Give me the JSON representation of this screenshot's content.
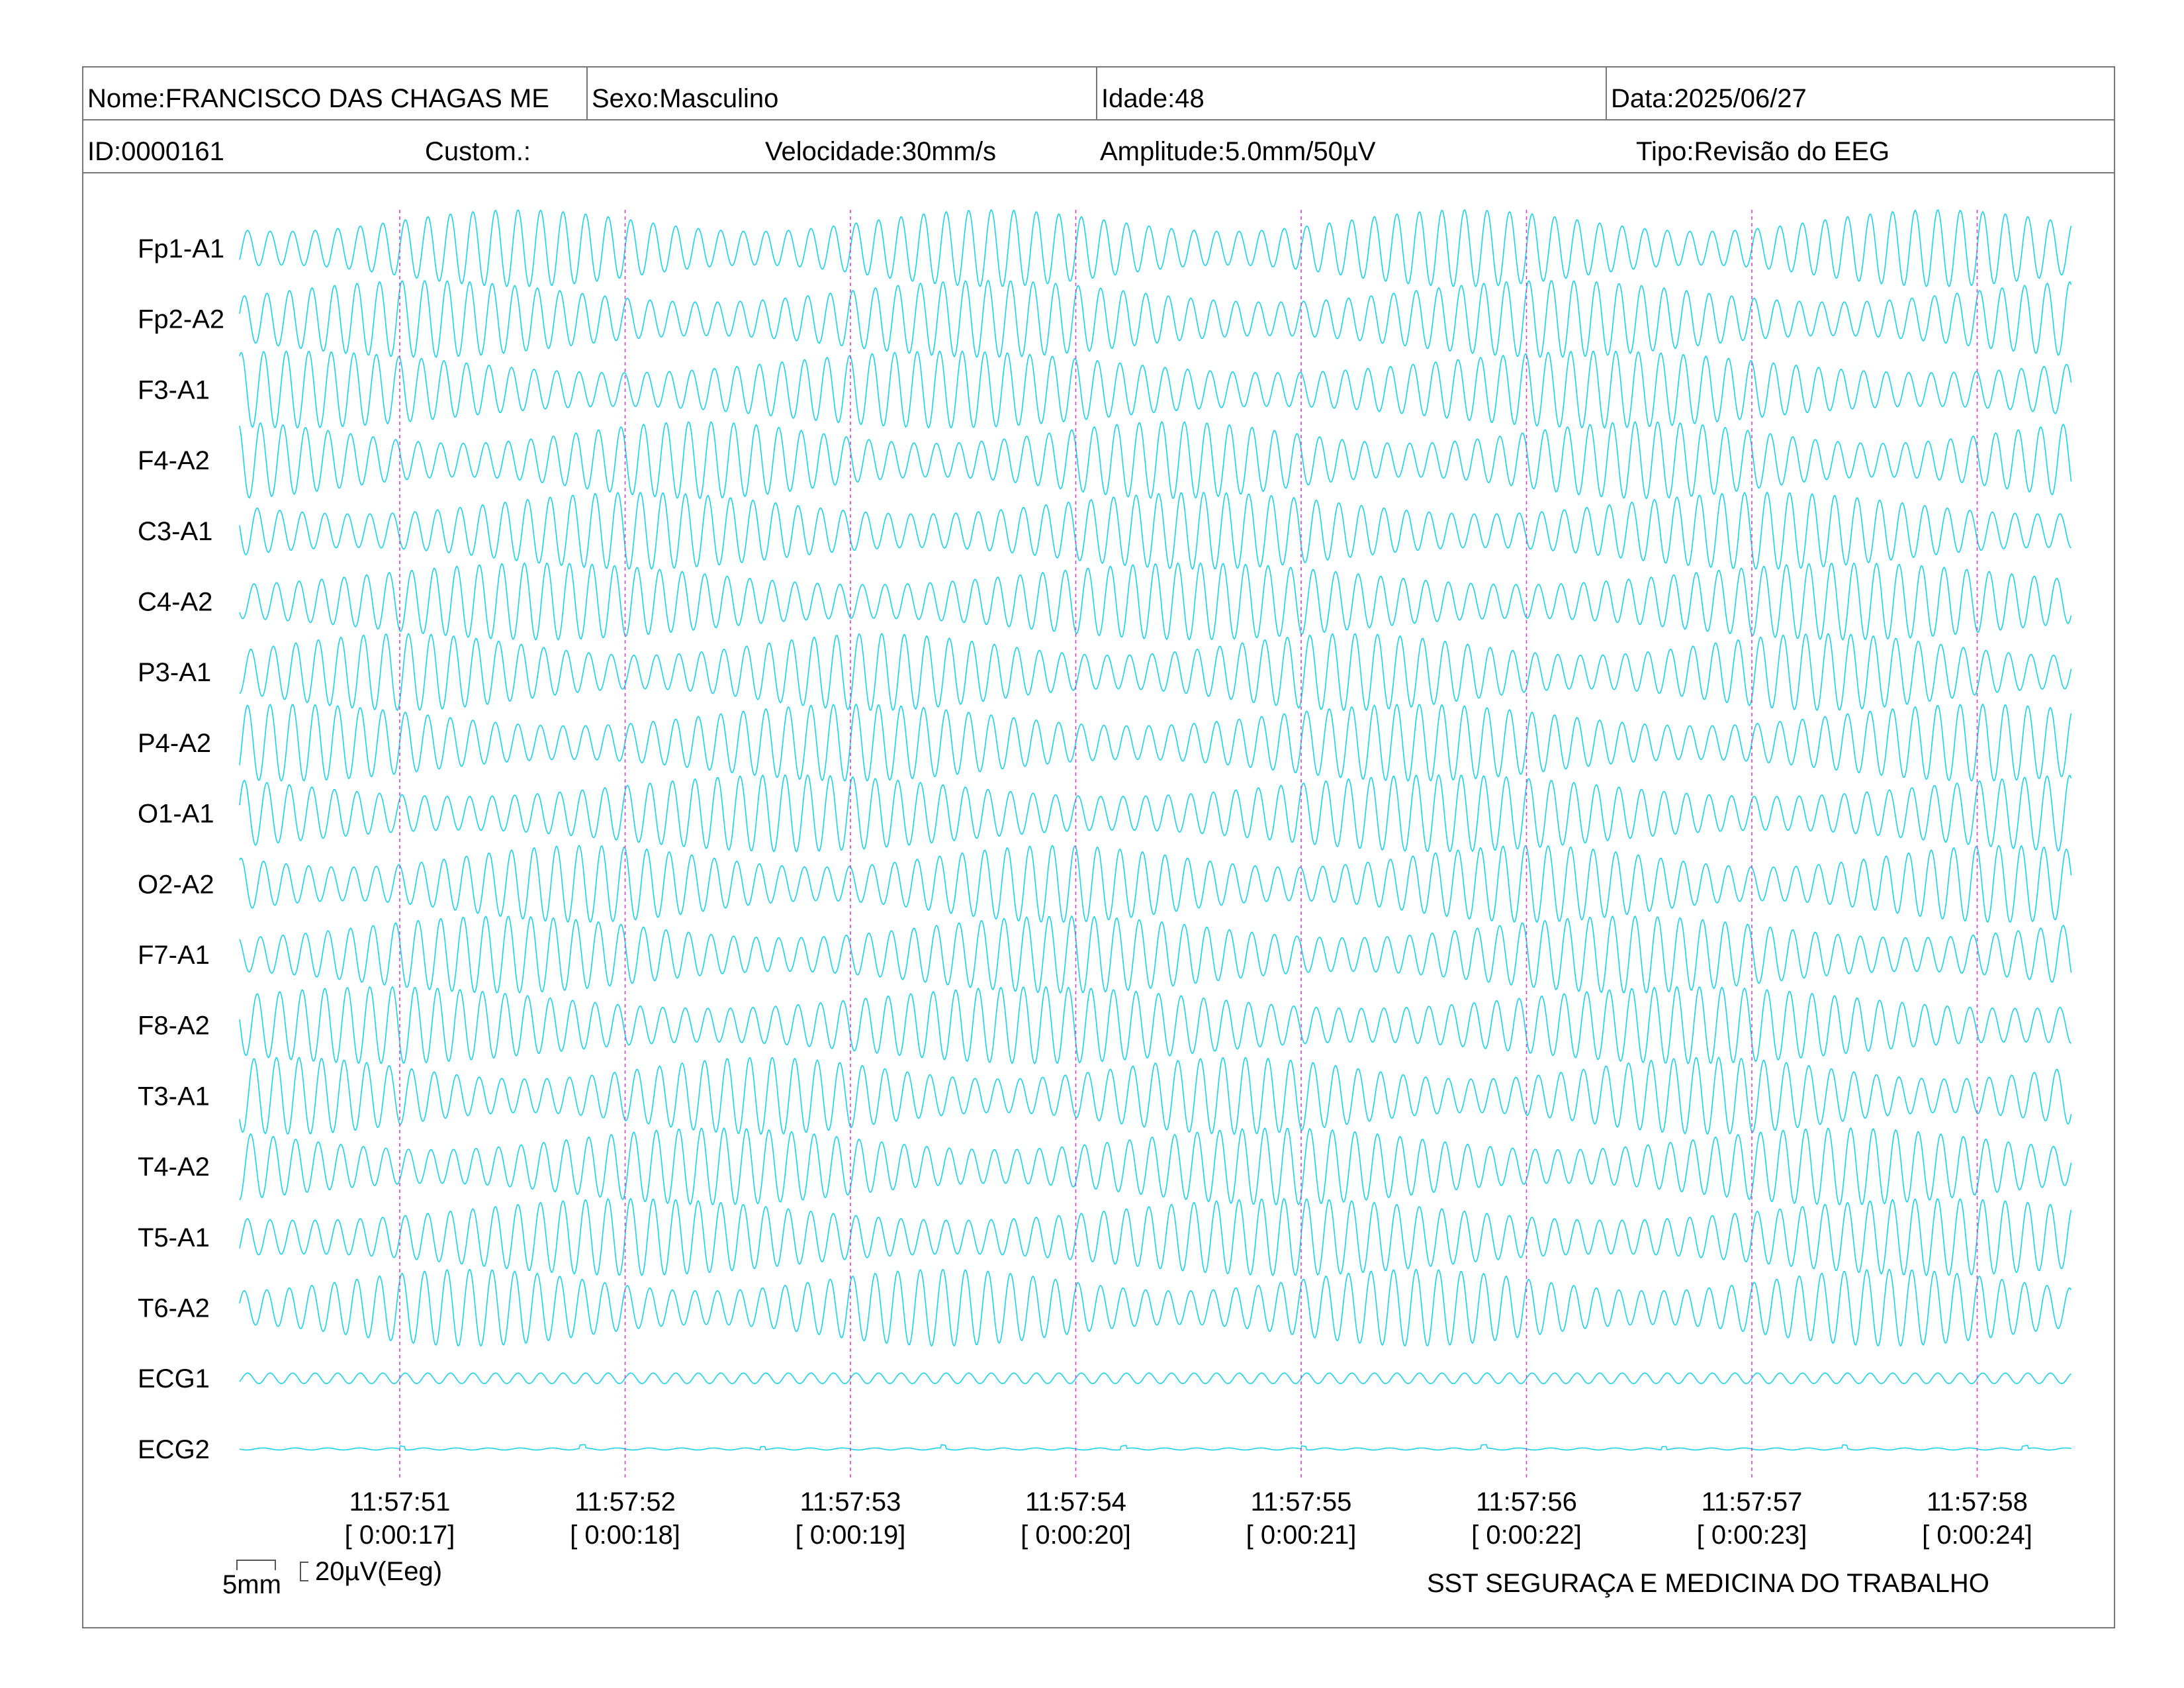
{
  "header": {
    "name": "Nome:FRANCISCO DAS CHAGAS ME",
    "sex": "Sexo:Masculino",
    "age": "Idade:48",
    "date": "Data:2025/06/27",
    "id": "ID:0000161",
    "custom": "Custom.:",
    "speed": "Velocidade:30mm/s",
    "amplitude": "Amplitude:5.0mm/50µV",
    "type": "Tipo:Revisão do EEG"
  },
  "footer": {
    "scale_time": "5mm",
    "scale_amp": "20µV(Eeg)",
    "company": "SST SEGURAÇA E MEDICINA DO TRABALHO"
  },
  "colors": {
    "trace": "#19d3ea",
    "marker": "#cc44cc",
    "border": "#777777",
    "text": "#000000"
  },
  "chart_data": {
    "type": "line",
    "channels": [
      "Fp1-A1",
      "Fp2-A2",
      "F3-A1",
      "F4-A2",
      "C3-A1",
      "C4-A2",
      "P3-A1",
      "P4-A2",
      "O1-A1",
      "O2-A2",
      "F7-A1",
      "F8-A2",
      "T3-A1",
      "T4-A2",
      "T5-A1",
      "T6-A2",
      "ECG1",
      "ECG2"
    ],
    "time_markers": [
      {
        "clock": "11:57:51",
        "elapsed": "[ 0:00:17]"
      },
      {
        "clock": "11:57:52",
        "elapsed": "[ 0:00:18]"
      },
      {
        "clock": "11:57:53",
        "elapsed": "[ 0:00:19]"
      },
      {
        "clock": "11:57:54",
        "elapsed": "[ 0:00:20]"
      },
      {
        "clock": "11:57:55",
        "elapsed": "[ 0:00:21]"
      },
      {
        "clock": "11:57:56",
        "elapsed": "[ 0:00:22]"
      },
      {
        "clock": "11:57:57",
        "elapsed": "[ 0:00:23]"
      },
      {
        "clock": "11:57:58",
        "elapsed": "[ 0:00:24]"
      }
    ],
    "eeg_frequency_hz": 10,
    "marker_interval_s": 1
  }
}
